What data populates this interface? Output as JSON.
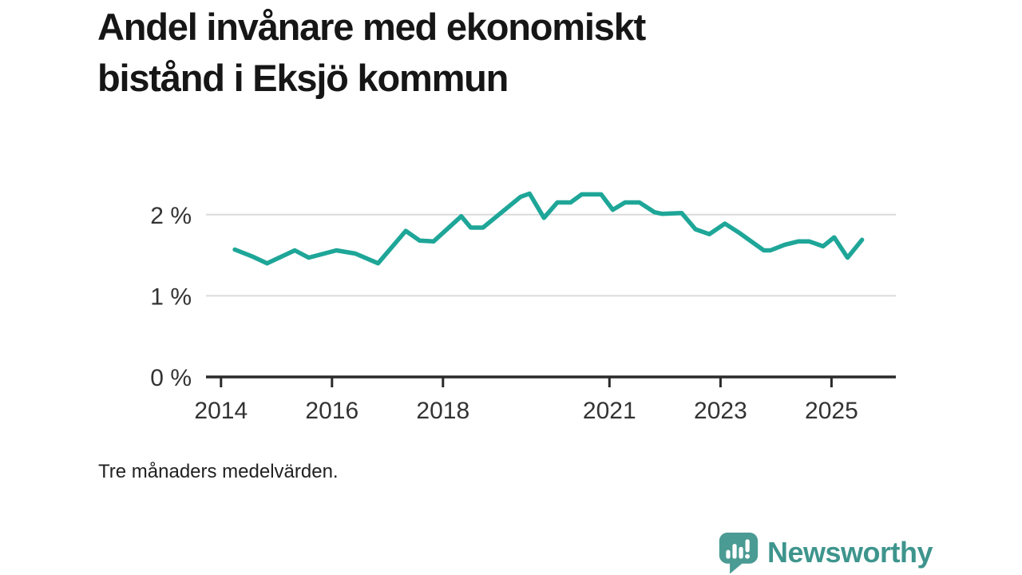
{
  "title": "Andel invånare med ekonomiskt bistånd i Eksjö kommun",
  "title_lines": [
    "Andel invånare med ekonomiskt",
    "bistånd i Eksjö kommun"
  ],
  "footnote": "Tre månaders medelvärden.",
  "branding": {
    "name": "Newsworthy",
    "logo_icon": "newsworthy-speech-bubble-bar-chart-icon",
    "wordmark_color": "#3E958D",
    "icon_color": "#4A9B93"
  },
  "colors": {
    "line": "#1EA698",
    "grid": "#DBDBDB",
    "axis": "#2A2A2A",
    "tick_label": "#333333",
    "title": "#161616",
    "footnote": "#212121"
  },
  "chart_data": {
    "type": "line",
    "title": "Andel invånare med ekonomiskt bistånd i Eksjö kommun",
    "xlabel": "",
    "ylabel": "",
    "unit": "%",
    "grid": "horizontal",
    "legend": "none",
    "xlim": [
      2013.73,
      2026.16
    ],
    "ylim": [
      0,
      2.48
    ],
    "x_ticks": [
      2014,
      2016,
      2018,
      2021,
      2023,
      2025
    ],
    "y_ticks": [
      {
        "value": 0,
        "label": "0 %"
      },
      {
        "value": 1,
        "label": "1 %"
      },
      {
        "value": 2,
        "label": "2 %"
      }
    ],
    "series": [
      {
        "name": "Andel invånare med ekonomiskt bistånd",
        "x": [
          2014.25,
          2014.58,
          2014.83,
          2015.33,
          2015.58,
          2016.08,
          2016.42,
          2016.83,
          2017.33,
          2017.58,
          2017.83,
          2018.33,
          2018.5,
          2018.72,
          2019.4,
          2019.56,
          2019.82,
          2020.06,
          2020.3,
          2020.5,
          2020.85,
          2021.06,
          2021.28,
          2021.54,
          2021.81,
          2021.95,
          2022.3,
          2022.55,
          2022.8,
          2023.08,
          2023.35,
          2023.78,
          2023.9,
          2024.16,
          2024.4,
          2024.6,
          2024.85,
          2025.05,
          2025.29,
          2025.55
        ],
        "values": [
          1.57,
          1.48,
          1.4,
          1.56,
          1.47,
          1.56,
          1.52,
          1.4,
          1.8,
          1.68,
          1.67,
          1.98,
          1.84,
          1.84,
          2.22,
          2.26,
          1.96,
          2.15,
          2.15,
          2.25,
          2.25,
          2.06,
          2.15,
          2.15,
          2.03,
          2.01,
          2.02,
          1.82,
          1.76,
          1.89,
          1.77,
          1.56,
          1.56,
          1.63,
          1.67,
          1.67,
          1.61,
          1.72,
          1.47,
          1.69
        ]
      }
    ]
  }
}
